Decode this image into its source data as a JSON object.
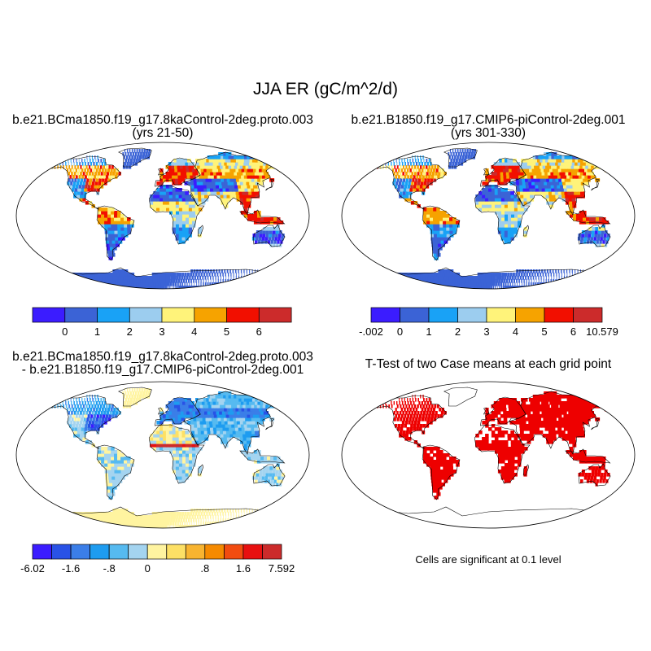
{
  "title": "JJA ER (gC/m^2/d)",
  "colors": {
    "land_fill": "#3b63d6",
    "signif": "#ee0000",
    "ocean": "#ffffff",
    "coast": "#000000"
  },
  "chart_data": [
    {
      "type": "heatmap",
      "panel": "top-left",
      "title": "b.e21.BCma1850.f19_g17.8kaControl-2deg.proto.003",
      "subtitle": "(yrs 21-50)",
      "colorbar": {
        "colors": [
          "#3b1cff",
          "#3b63d6",
          "#19a2f6",
          "#9ccdef",
          "#fff37a",
          "#f6a300",
          "#f20f00",
          "#cc2b2b"
        ],
        "labels": [
          "0",
          "1",
          "2",
          "3",
          "4",
          "5",
          "6"
        ]
      }
    },
    {
      "type": "heatmap",
      "panel": "top-right",
      "title": "b.e21.B1850.f19_g17.CMIP6-piControl-2deg.001",
      "subtitle": "(yrs 301-330)",
      "colorbar": {
        "colors": [
          "#3b1cff",
          "#3b63d6",
          "#19a2f6",
          "#9ccdef",
          "#fff37a",
          "#f6a300",
          "#f20f00",
          "#cc2b2b"
        ],
        "labels": [
          "-.002",
          "0",
          "1",
          "2",
          "3",
          "4",
          "5",
          "6",
          "10.579"
        ]
      }
    },
    {
      "type": "heatmap",
      "panel": "bottom-left",
      "title": "b.e21.BCma1850.f19_g17.8kaControl-2deg.proto.003",
      "subtitle": "- b.e21.B1850.f19_g17.CMIP6-piControl-2deg.001",
      "colorbar": {
        "colors": [
          "#3b1cff",
          "#2952e6",
          "#3b7ee8",
          "#1e9cf0",
          "#56baf0",
          "#a4d4f0",
          "#fff4a0",
          "#fde065",
          "#f8b430",
          "#f58a00",
          "#f24c10",
          "#e81010",
          "#cc2b2b"
        ],
        "labels": [
          "-6.02",
          "-1.6",
          "-.8",
          "0",
          ".8",
          "1.6",
          "7.592"
        ]
      }
    },
    {
      "type": "heatmap",
      "panel": "bottom-right",
      "title": "T-Test of two Case means at each grid point",
      "note": "Cells are significant at 0.1 level"
    }
  ]
}
